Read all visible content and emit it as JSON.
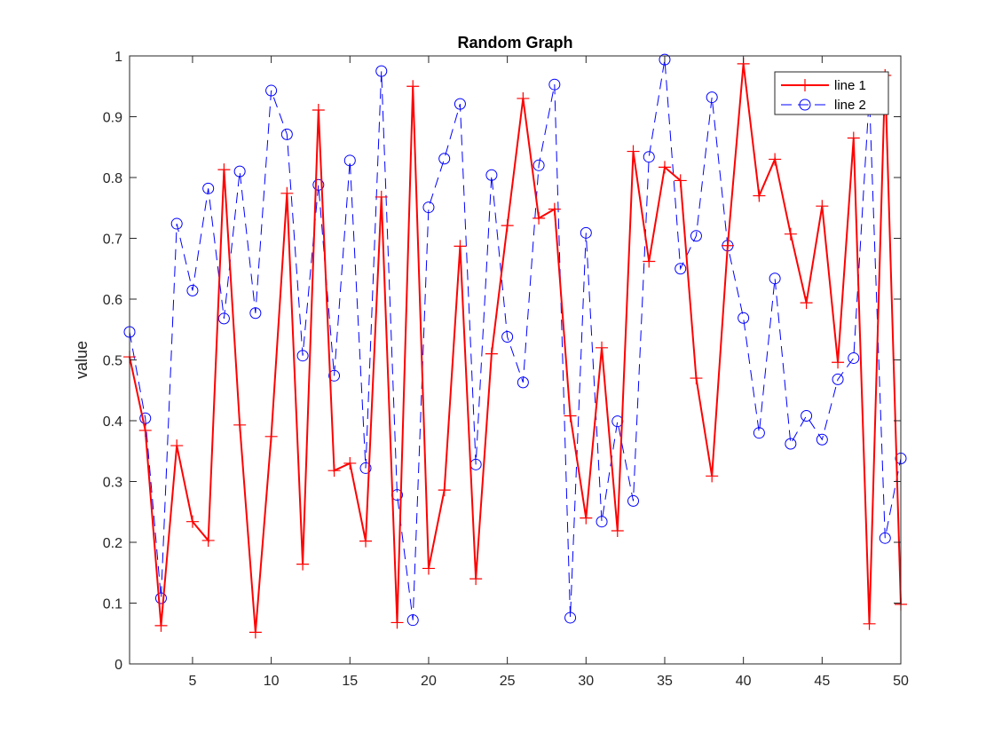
{
  "chart_data": {
    "type": "line",
    "title": "Random Graph",
    "xlabel": "",
    "ylabel": "value",
    "xlim": [
      1,
      50
    ],
    "ylim": [
      0,
      1
    ],
    "xticks": [
      5,
      10,
      15,
      20,
      25,
      30,
      35,
      40,
      45,
      50
    ],
    "yticks": [
      0,
      0.1,
      0.2,
      0.3,
      0.4,
      0.5,
      0.6,
      0.7,
      0.8,
      0.9,
      1
    ],
    "ytick_labels": [
      "0",
      "0.1",
      "0.2",
      "0.3",
      "0.4",
      "0.5",
      "0.6",
      "0.7",
      "0.8",
      "0.9",
      "1"
    ],
    "grid": false,
    "legend_position": "top-right",
    "x": [
      1,
      2,
      3,
      4,
      5,
      6,
      7,
      8,
      9,
      10,
      11,
      12,
      13,
      14,
      15,
      16,
      17,
      18,
      19,
      20,
      21,
      22,
      23,
      24,
      25,
      26,
      27,
      28,
      29,
      30,
      31,
      32,
      33,
      34,
      35,
      36,
      37,
      38,
      39,
      40,
      41,
      42,
      43,
      44,
      45,
      46,
      47,
      48,
      49,
      50
    ],
    "series": [
      {
        "name": "line 1",
        "color": "#ff0000",
        "line_style": "solid",
        "marker": "plus",
        "values": [
          0.505,
          0.384,
          0.063,
          0.359,
          0.234,
          0.203,
          0.813,
          0.393,
          0.052,
          0.374,
          0.774,
          0.164,
          0.911,
          0.318,
          0.33,
          0.202,
          0.768,
          0.068,
          0.95,
          0.157,
          0.286,
          0.687,
          0.14,
          0.51,
          0.721,
          0.93,
          0.733,
          0.748,
          0.408,
          0.24,
          0.52,
          0.219,
          0.843,
          0.662,
          0.817,
          0.795,
          0.47,
          0.309,
          0.688,
          0.987,
          0.77,
          0.83,
          0.707,
          0.594,
          0.753,
          0.496,
          0.865,
          0.066,
          0.968,
          0.098
        ]
      },
      {
        "name": "line 2",
        "color": "#0000ff",
        "line_style": "dashed",
        "marker": "circle",
        "values": [
          0.546,
          0.404,
          0.108,
          0.724,
          0.614,
          0.782,
          0.568,
          0.81,
          0.577,
          0.943,
          0.871,
          0.507,
          0.788,
          0.474,
          0.828,
          0.322,
          0.975,
          0.278,
          0.072,
          0.751,
          0.831,
          0.921,
          0.328,
          0.804,
          0.538,
          0.463,
          0.82,
          0.953,
          0.076,
          0.709,
          0.234,
          0.399,
          0.268,
          0.834,
          0.994,
          0.65,
          0.704,
          0.932,
          0.688,
          0.569,
          0.38,
          0.634,
          0.362,
          0.408,
          0.369,
          0.468,
          0.503,
          0.936,
          0.207,
          0.338
        ]
      }
    ]
  }
}
